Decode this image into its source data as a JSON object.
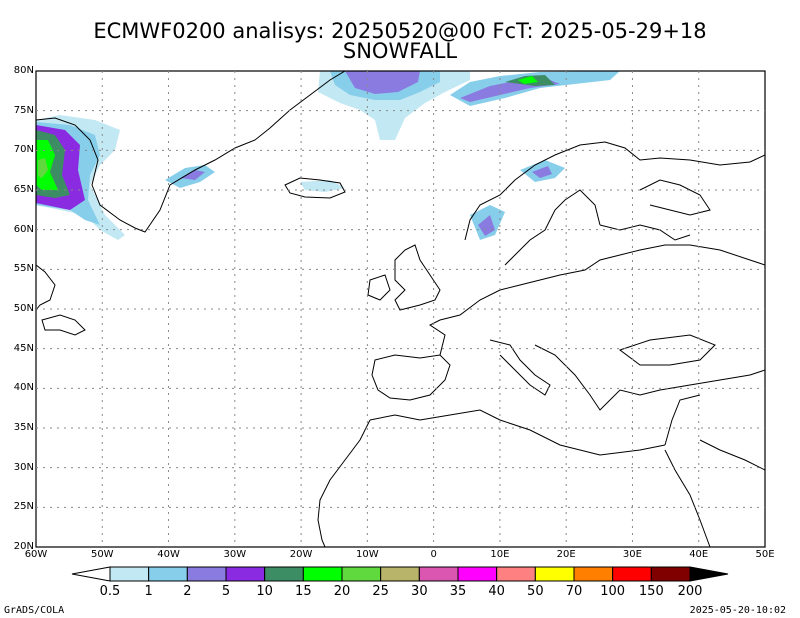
{
  "title": "ECMWF0200 analisys: 20250520@00 FcT: 2025-05-29+18",
  "subtitle": "SNOWFALL",
  "lat_labels": [
    "80N",
    "75N",
    "70N",
    "65N",
    "60N",
    "55N",
    "50N",
    "45N",
    "40N",
    "35N",
    "30N",
    "25N",
    "20N"
  ],
  "lon_labels": [
    "60W",
    "50W",
    "40W",
    "30W",
    "20W",
    "10W",
    "0",
    "10E",
    "20E",
    "30E",
    "40E",
    "50E"
  ],
  "legend": {
    "labels": [
      "0.5",
      "1",
      "2",
      "5",
      "10",
      "15",
      "20",
      "25",
      "30",
      "35",
      "40",
      "50",
      "70",
      "100",
      "150",
      "200"
    ],
    "colors": [
      "#c2e8f4",
      "#87ceeb",
      "#8a7be0",
      "#8a2be2",
      "#3c8c64",
      "#00ff00",
      "#5fd93d",
      "#b8b46a",
      "#db56b0",
      "#ff00ff",
      "#ff8080",
      "#ffff00",
      "#ff8000",
      "#ff0000",
      "#800000"
    ],
    "low_color": "#ffffff",
    "high_color": "#000000"
  },
  "footer_left": "GrADS/COLA",
  "footer_right": "2025-05-20-10:02"
}
